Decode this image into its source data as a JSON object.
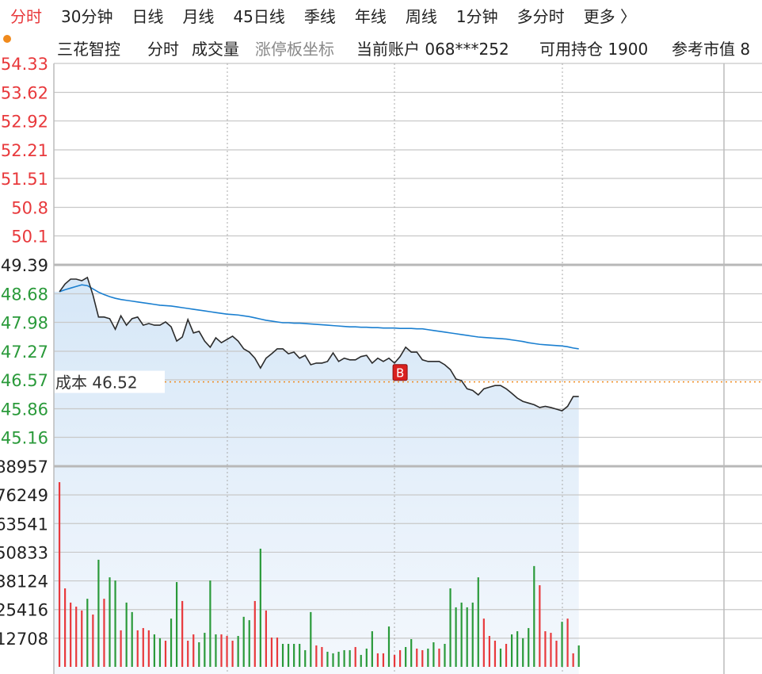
{
  "tabs": [
    "分时",
    "30分钟",
    "日线",
    "月线",
    "45日线",
    "季线",
    "年线",
    "周线",
    "1分钟",
    "多分时",
    "更多 〉"
  ],
  "header": {
    "stock": "三花智控",
    "items": [
      "分时",
      "成交量",
      "涨停板坐标",
      "当前账户 068***252",
      "可用持仓 1900",
      "参考市值 8"
    ]
  },
  "chart_data": [
    {
      "type": "line",
      "x": [
        2,
        4,
        6,
        8,
        10,
        12,
        14,
        16,
        18,
        20,
        22,
        24,
        26,
        28,
        30,
        32,
        34,
        36,
        38,
        40,
        42,
        44,
        46,
        48,
        50,
        52,
        54,
        56,
        58,
        60,
        62,
        64,
        66,
        68,
        70,
        72,
        74,
        76,
        78,
        80,
        82,
        84,
        86,
        88,
        90,
        92,
        94,
        96,
        98,
        100,
        102,
        104,
        106,
        108,
        110,
        112,
        114,
        116,
        118,
        120,
        122,
        124,
        126,
        128,
        130,
        132,
        134,
        136,
        138,
        140,
        142,
        144,
        146,
        148,
        150,
        152,
        154,
        156,
        158,
        160,
        162,
        164,
        166,
        168,
        170,
        172,
        174,
        176,
        178,
        180,
        182,
        184,
        186,
        188
      ],
      "xlim": [
        0,
        240
      ],
      "ylim": [
        44.45,
        54.33
      ],
      "yticks": [
        54.33,
        53.62,
        52.92,
        52.21,
        51.51,
        50.8,
        50.1,
        49.39,
        48.68,
        47.98,
        47.27,
        46.57,
        45.86,
        45.16
      ],
      "ytick_colors": [
        "#e8393c",
        "#e8393c",
        "#e8393c",
        "#e8393c",
        "#e8393c",
        "#e8393c",
        "#e8393c",
        "#222222",
        "#2a9a3a",
        "#2a9a3a",
        "#2a9a3a",
        "#2a9a3a",
        "#2a9a3a",
        "#2a9a3a"
      ],
      "series": [
        {
          "color": "#2b2b2b",
          "values": [
            48.73,
            48.92,
            49.04,
            49.04,
            49.0,
            49.08,
            48.65,
            48.11,
            48.11,
            48.07,
            47.81,
            48.14,
            47.91,
            48.07,
            48.11,
            47.91,
            47.95,
            47.91,
            47.91,
            47.99,
            47.87,
            47.52,
            47.62,
            48.05,
            47.72,
            47.76,
            47.52,
            47.37,
            47.6,
            47.48,
            47.56,
            47.64,
            47.52,
            47.33,
            47.25,
            47.1,
            46.86,
            47.1,
            47.21,
            47.33,
            47.33,
            47.21,
            47.25,
            47.1,
            47.17,
            46.94,
            46.98,
            46.98,
            47.02,
            47.23,
            47.02,
            47.1,
            47.06,
            47.06,
            47.14,
            47.17,
            46.98,
            47.1,
            47.02,
            47.1,
            46.98,
            47.14,
            47.37,
            47.25,
            47.25,
            47.06,
            47.02,
            47.02,
            47.02,
            46.94,
            46.82,
            46.59,
            46.55,
            46.35,
            46.31,
            46.2,
            46.35,
            46.39,
            46.43,
            46.43,
            46.35,
            46.24,
            46.12,
            46.04,
            46.0,
            45.96,
            45.89,
            45.92,
            45.89,
            45.85,
            45.81,
            45.92,
            46.16,
            46.16
          ]
        },
        {
          "color": "#1a7fd0",
          "values": [
            48.73,
            48.78,
            48.82,
            48.86,
            48.9,
            48.88,
            48.8,
            48.72,
            48.66,
            48.61,
            48.57,
            48.54,
            48.52,
            48.5,
            48.48,
            48.46,
            48.44,
            48.42,
            48.4,
            48.39,
            48.38,
            48.36,
            48.34,
            48.32,
            48.3,
            48.28,
            48.26,
            48.24,
            48.22,
            48.2,
            48.18,
            48.17,
            48.16,
            48.14,
            48.12,
            48.09,
            48.06,
            48.03,
            48.01,
            47.99,
            47.97,
            47.97,
            47.96,
            47.96,
            47.95,
            47.94,
            47.93,
            47.92,
            47.91,
            47.9,
            47.89,
            47.88,
            47.87,
            47.87,
            47.86,
            47.86,
            47.85,
            47.85,
            47.84,
            47.84,
            47.84,
            47.83,
            47.83,
            47.83,
            47.82,
            47.82,
            47.8,
            47.78,
            47.76,
            47.74,
            47.72,
            47.7,
            47.68,
            47.66,
            47.64,
            47.62,
            47.61,
            47.6,
            47.59,
            47.58,
            47.57,
            47.55,
            47.53,
            47.51,
            47.48,
            47.46,
            47.44,
            47.43,
            47.42,
            47.41,
            47.4,
            47.38,
            47.35,
            47.33
          ]
        }
      ],
      "annotations": [
        {
          "label": "成本",
          "value": 46.52,
          "color": "#f08a1c"
        }
      ],
      "markers": [
        {
          "label": "B",
          "x": 124,
          "color": "#d9201e"
        }
      ]
    },
    {
      "type": "bar",
      "ylim": [
        0,
        88957
      ],
      "yticks": [
        12708,
        25416,
        38124,
        50833,
        63541,
        76249,
        88957
      ],
      "values": [
        81900,
        34800,
        28500,
        26700,
        25000,
        30200,
        23200,
        47500,
        30200,
        39700,
        38300,
        16200,
        28500,
        24300,
        16200,
        17200,
        16200,
        14400,
        12700,
        11600,
        21400,
        37600,
        29200,
        11600,
        14400,
        10900,
        15100,
        38300,
        14400,
        14400,
        13700,
        11600,
        13700,
        22200,
        20700,
        29200,
        52400,
        25000,
        13000,
        13000,
        10200,
        10200,
        10200,
        10200,
        7400,
        24300,
        9500,
        8800,
        6700,
        6000,
        6700,
        7400,
        7400,
        8800,
        5300,
        8100,
        15800,
        6000,
        6000,
        17900,
        5300,
        7400,
        8800,
        12300,
        8100,
        7400,
        8100,
        10900,
        8100,
        10200,
        34800,
        26400,
        28500,
        26400,
        28500,
        39700,
        21400,
        13700,
        11600,
        8100,
        10200,
        14400,
        15800,
        12700,
        17200,
        44700,
        36200,
        15800,
        15100,
        11600,
        20000,
        21400,
        6000,
        9500
      ],
      "colors": [
        "#e8393c",
        "#e8393c",
        "#e8393c",
        "#e8393c",
        "#e8393c",
        "#2a9a3a",
        "#e8393c",
        "#2a9a3a",
        "#e8393c",
        "#2a9a3a",
        "#2a9a3a",
        "#e8393c",
        "#2a9a3a",
        "#2a9a3a",
        "#e8393c",
        "#e8393c",
        "#e8393c",
        "#2a9a3a",
        "#2a9a3a",
        "#e8393c",
        "#2a9a3a",
        "#2a9a3a",
        "#e8393c",
        "#e8393c",
        "#e8393c",
        "#2a9a3a",
        "#2a9a3a",
        "#2a9a3a",
        "#2a9a3a",
        "#e8393c",
        "#e8393c",
        "#e8393c",
        "#2a9a3a",
        "#2a9a3a",
        "#2a9a3a",
        "#e8393c",
        "#2a9a3a",
        "#e8393c",
        "#e8393c",
        "#e8393c",
        "#2a9a3a",
        "#2a9a3a",
        "#2a9a3a",
        "#2a9a3a",
        "#2a9a3a",
        "#2a9a3a",
        "#e8393c",
        "#e8393c",
        "#2a9a3a",
        "#2a9a3a",
        "#2a9a3a",
        "#2a9a3a",
        "#2a9a3a",
        "#e8393c",
        "#2a9a3a",
        "#2a9a3a",
        "#2a9a3a",
        "#e8393c",
        "#e8393c",
        "#2a9a3a",
        "#e8393c",
        "#e8393c",
        "#2a9a3a",
        "#2a9a3a",
        "#e8393c",
        "#e8393c",
        "#2a9a3a",
        "#2a9a3a",
        "#e8393c",
        "#2a9a3a",
        "#2a9a3a",
        "#2a9a3a",
        "#2a9a3a",
        "#2a9a3a",
        "#2a9a3a",
        "#2a9a3a",
        "#e8393c",
        "#e8393c",
        "#e8393c",
        "#2a9a3a",
        "#e8393c",
        "#2a9a3a",
        "#2a9a3a",
        "#2a9a3a",
        "#2a9a3a",
        "#2a9a3a",
        "#e8393c",
        "#e8393c",
        "#e8393c",
        "#e8393c",
        "#2a9a3a",
        "#e8393c",
        "#e8393c",
        "#2a9a3a"
      ]
    }
  ]
}
